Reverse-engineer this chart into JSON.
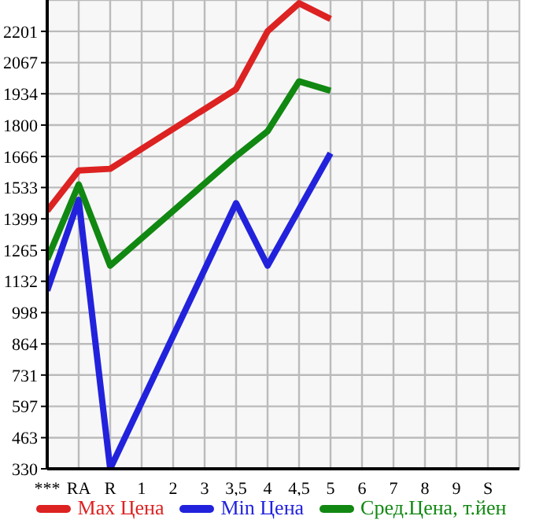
{
  "chart_data": {
    "type": "line",
    "categories": [
      "***",
      "RA",
      "R",
      "1",
      "2",
      "3",
      "3,5",
      "4",
      "4,5",
      "5",
      "6",
      "7",
      "8",
      "9",
      "S"
    ],
    "series": [
      {
        "name": "Max Цена",
        "color": "#dd2222",
        "values": [
          1433,
          1606,
          1613,
          null,
          null,
          null,
          1954,
          2201,
          2321,
          2254,
          null,
          null,
          null,
          null,
          null
        ]
      },
      {
        "name": "Min Цена",
        "color": "#2222dd",
        "values": [
          1092,
          1480,
          330,
          null,
          null,
          null,
          1466,
          1199,
          null,
          1680,
          null,
          null,
          null,
          null,
          null
        ]
      },
      {
        "name": "Сред.Цена, т.йен",
        "color": "#118811",
        "values": [
          1226,
          1546,
          1199,
          null,
          null,
          null,
          1667,
          1774,
          1987,
          1947,
          null,
          null,
          null,
          null,
          null
        ]
      }
    ],
    "ylim": [
      330,
      2335
    ],
    "yticks": [
      330,
      463,
      597,
      731,
      864,
      998,
      1132,
      1265,
      1399,
      1533,
      1666,
      1800,
      1934,
      2067,
      2201
    ],
    "grid": true,
    "legend": "bottom",
    "marker": "none",
    "line_style": "solid"
  }
}
